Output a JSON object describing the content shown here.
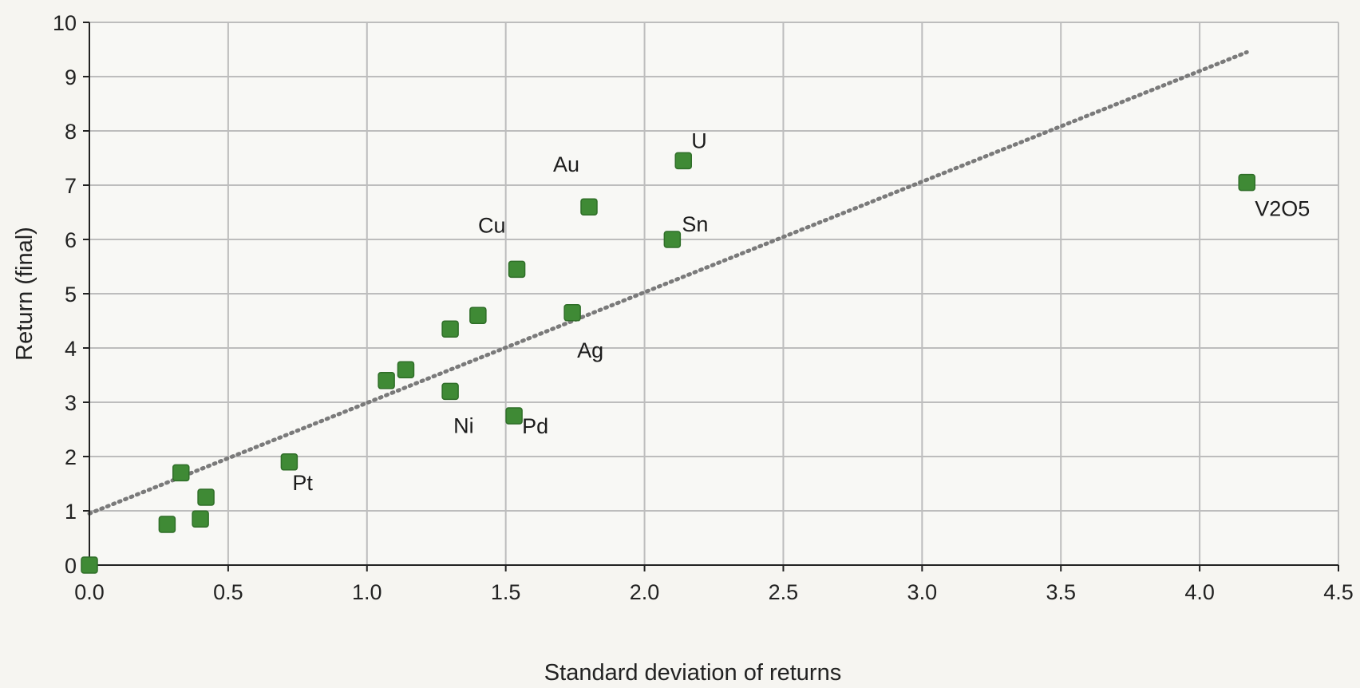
{
  "chart_data": {
    "type": "scatter",
    "xlabel": "Standard deviation of returns",
    "ylabel": "Return (final)",
    "xlim": [
      0,
      4.5
    ],
    "ylim": [
      0,
      10
    ],
    "x_ticks": [
      "0.0",
      "0.5",
      "1.0",
      "1.5",
      "2.0",
      "2.5",
      "3.0",
      "3.5",
      "4.0",
      "4.5"
    ],
    "y_ticks": [
      "0",
      "1",
      "2",
      "3",
      "4",
      "5",
      "6",
      "7",
      "8",
      "9",
      "10"
    ],
    "grid": true,
    "marker_color": "#3f8a35",
    "trendline": {
      "style": "dotted",
      "color": "#7a7a7a",
      "x": [
        0.0,
        4.17
      ],
      "y": [
        0.95,
        9.45
      ]
    },
    "points": [
      {
        "x": 0.0,
        "y": 0.0,
        "label": ""
      },
      {
        "x": 0.28,
        "y": 0.75,
        "label": ""
      },
      {
        "x": 0.33,
        "y": 1.7,
        "label": ""
      },
      {
        "x": 0.4,
        "y": 0.85,
        "label": ""
      },
      {
        "x": 0.42,
        "y": 1.25,
        "label": ""
      },
      {
        "x": 0.72,
        "y": 1.9,
        "label": "Pt"
      },
      {
        "x": 1.07,
        "y": 3.4,
        "label": ""
      },
      {
        "x": 1.14,
        "y": 3.6,
        "label": ""
      },
      {
        "x": 1.3,
        "y": 4.35,
        "label": ""
      },
      {
        "x": 1.3,
        "y": 3.2,
        "label": "Ni"
      },
      {
        "x": 1.4,
        "y": 4.6,
        "label": ""
      },
      {
        "x": 1.53,
        "y": 2.75,
        "label": "Pd"
      },
      {
        "x": 1.54,
        "y": 5.45,
        "label": "Cu"
      },
      {
        "x": 1.74,
        "y": 4.65,
        "label": "Ag"
      },
      {
        "x": 1.8,
        "y": 6.6,
        "label": "Au"
      },
      {
        "x": 2.1,
        "y": 6.0,
        "label": "Sn"
      },
      {
        "x": 2.14,
        "y": 7.45,
        "label": "U"
      },
      {
        "x": 4.17,
        "y": 7.05,
        "label": "V2O5"
      }
    ]
  }
}
